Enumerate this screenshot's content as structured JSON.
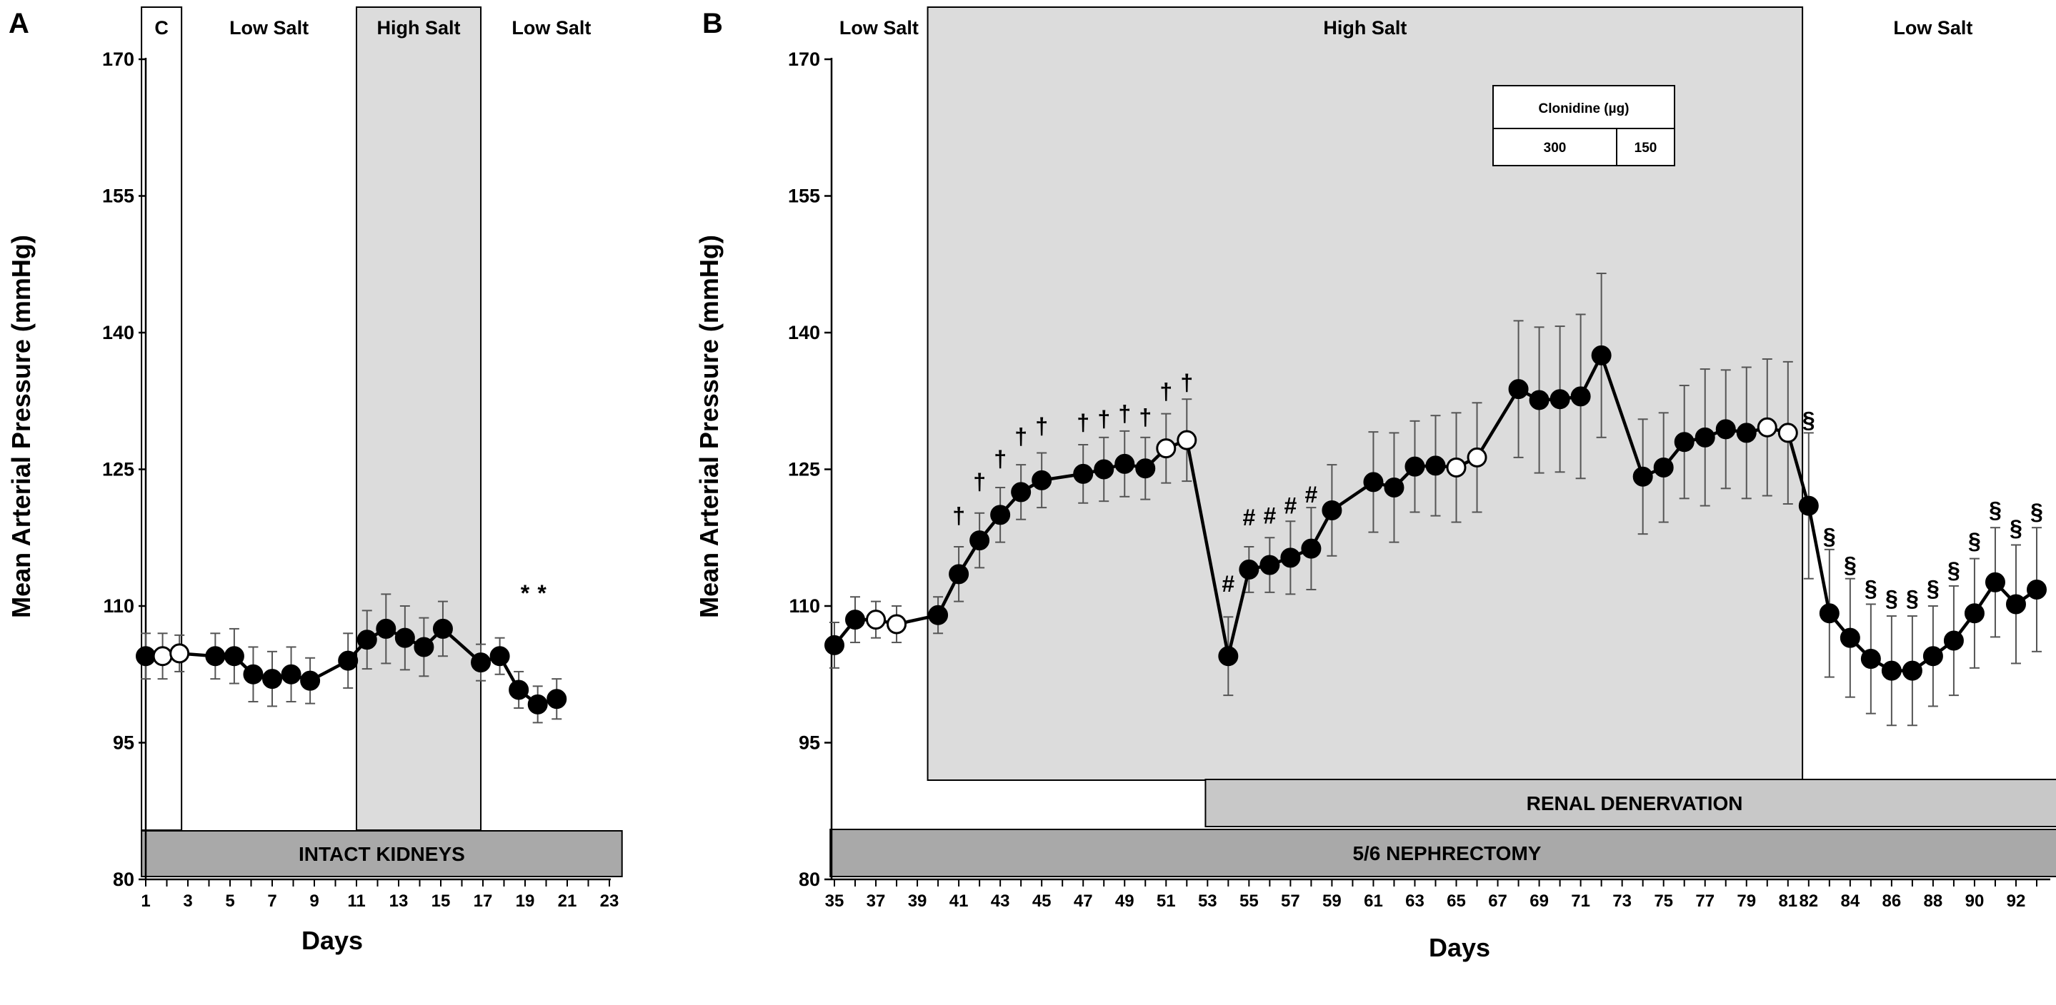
{
  "chart_data": [
    {
      "panel": "A",
      "type": "line",
      "ylabel": "Mean Arterial Pressure (mmHg)",
      "xlabel": "Days",
      "ylim": [
        80,
        170
      ],
      "yticks": [
        80,
        95,
        110,
        125,
        140,
        155,
        170
      ],
      "xlim": [
        1,
        23
      ],
      "xticks": [
        1,
        3,
        5,
        7,
        9,
        11,
        13,
        15,
        17,
        19,
        21,
        23
      ],
      "phases": [
        {
          "label": "C",
          "start": 0.8,
          "end": 2.7,
          "shaded": false,
          "boxed": true
        },
        {
          "label": "Low Salt",
          "start": 2.7,
          "end": 11,
          "shaded": false,
          "boxed": false
        },
        {
          "label": "High Salt",
          "start": 11,
          "end": 16.9,
          "shaded": true,
          "boxed": true
        },
        {
          "label": "Low Salt",
          "start": 16.9,
          "end": 23.6,
          "shaded": false,
          "boxed": false
        }
      ],
      "bars": [
        {
          "label": "INTACT KIDNEYS",
          "start": 0.8,
          "end": 23.6,
          "row": 0
        }
      ],
      "series": [
        {
          "name": "MAP",
          "points": [
            {
              "x": 1,
              "y": 104.5,
              "err": 2.5,
              "filled": true
            },
            {
              "x": 1.8,
              "y": 104.5,
              "err": 2.5,
              "filled": false
            },
            {
              "x": 2.6,
              "y": 104.8,
              "err": 2.0,
              "filled": false
            },
            {
              "x": 4.3,
              "y": 104.5,
              "err": 2.5,
              "filled": true
            },
            {
              "x": 5.2,
              "y": 104.5,
              "err": 3.0,
              "filled": true
            },
            {
              "x": 6.1,
              "y": 102.5,
              "err": 3.0,
              "filled": true
            },
            {
              "x": 7.0,
              "y": 102.0,
              "err": 3.0,
              "filled": true
            },
            {
              "x": 7.9,
              "y": 102.5,
              "err": 3.0,
              "filled": true
            },
            {
              "x": 8.8,
              "y": 101.8,
              "err": 2.5,
              "filled": true
            },
            {
              "x": 10.6,
              "y": 104.0,
              "err": 3.0,
              "filled": true
            },
            {
              "x": 11.5,
              "y": 106.3,
              "err": 3.2,
              "filled": true
            },
            {
              "x": 12.4,
              "y": 107.5,
              "err": 3.8,
              "filled": true
            },
            {
              "x": 13.3,
              "y": 106.5,
              "err": 3.5,
              "filled": true
            },
            {
              "x": 14.2,
              "y": 105.5,
              "err": 3.2,
              "filled": true
            },
            {
              "x": 15.1,
              "y": 107.5,
              "err": 3.0,
              "filled": true
            },
            {
              "x": 16.9,
              "y": 103.8,
              "err": 2.0,
              "filled": true
            },
            {
              "x": 17.8,
              "y": 104.5,
              "err": 2.0,
              "filled": true
            },
            {
              "x": 18.7,
              "y": 100.8,
              "err": 2.0,
              "filled": true
            },
            {
              "x": 19.6,
              "y": 99.2,
              "err": 2.0,
              "filled": true
            },
            {
              "x": 20.5,
              "y": 99.8,
              "err": 2.2,
              "filled": true
            }
          ]
        }
      ],
      "annotations": [
        {
          "text": "*",
          "x": 19.0,
          "y": 111.5
        },
        {
          "text": "*",
          "x": 19.8,
          "y": 111.5
        }
      ]
    },
    {
      "panel": "B",
      "type": "line",
      "ylabel": "Mean Arterial Pressure (mmHg)",
      "xlabel": "Days",
      "ylim": [
        80,
        170
      ],
      "yticks": [
        80,
        95,
        110,
        125,
        140,
        155,
        170
      ],
      "xlim": [
        35,
        93
      ],
      "xticks": [
        35,
        37,
        39,
        41,
        43,
        45,
        47,
        49,
        51,
        53,
        55,
        57,
        59,
        61,
        63,
        65,
        67,
        69,
        71,
        73,
        75,
        77,
        79,
        81,
        82,
        84,
        86,
        88,
        90,
        92
      ],
      "phases": [
        {
          "label": "Low Salt",
          "start": 34.8,
          "end": 39.5,
          "shaded": false,
          "boxed": false
        },
        {
          "label": "High Salt",
          "start": 39.5,
          "end": 81.7,
          "shaded": true,
          "boxed": true
        },
        {
          "label": "Low Salt",
          "start": 81.7,
          "end": 94.3,
          "shaded": false,
          "boxed": false
        }
      ],
      "bars": [
        {
          "label": "RENAL DENERVATION",
          "start": 52.9,
          "end": 94.3,
          "row": 1
        },
        {
          "label": "5/6 NEPHRECTOMY",
          "start": 34.8,
          "end": 94.3,
          "row": 0
        }
      ],
      "legend": {
        "title": "Clonidine  (µg)",
        "cells": [
          "300",
          "150"
        ]
      },
      "series": [
        {
          "name": "MAP",
          "points": [
            {
              "x": 35,
              "y": 105.7,
              "err": 2.5,
              "filled": true
            },
            {
              "x": 36,
              "y": 108.5,
              "err": 2.5,
              "filled": true
            },
            {
              "x": 37,
              "y": 108.5,
              "err": 2.0,
              "filled": false
            },
            {
              "x": 38,
              "y": 108.0,
              "err": 2.0,
              "filled": false
            },
            {
              "x": 40,
              "y": 109.0,
              "err": 2.0,
              "filled": true
            },
            {
              "x": 41,
              "y": 113.5,
              "err": 3.0,
              "filled": true
            },
            {
              "x": 42,
              "y": 117.2,
              "err": 3.0,
              "filled": true
            },
            {
              "x": 43,
              "y": 120.0,
              "err": 3.0,
              "filled": true
            },
            {
              "x": 44,
              "y": 122.5,
              "err": 3.0,
              "filled": true
            },
            {
              "x": 45,
              "y": 123.8,
              "err": 3.0,
              "filled": true
            },
            {
              "x": 47,
              "y": 124.5,
              "err": 3.2,
              "filled": true
            },
            {
              "x": 48,
              "y": 125.0,
              "err": 3.5,
              "filled": true
            },
            {
              "x": 49,
              "y": 125.6,
              "err": 3.6,
              "filled": true
            },
            {
              "x": 50,
              "y": 125.1,
              "err": 3.4,
              "filled": true
            },
            {
              "x": 51,
              "y": 127.3,
              "err": 3.8,
              "filled": false
            },
            {
              "x": 52,
              "y": 128.2,
              "err": 4.5,
              "filled": false
            },
            {
              "x": 54,
              "y": 104.5,
              "err": 4.3,
              "filled": true
            },
            {
              "x": 55,
              "y": 114.0,
              "err": 2.5,
              "filled": true
            },
            {
              "x": 56,
              "y": 114.5,
              "err": 3.0,
              "filled": true
            },
            {
              "x": 57,
              "y": 115.3,
              "err": 4.0,
              "filled": true
            },
            {
              "x": 58,
              "y": 116.3,
              "err": 4.5,
              "filled": true
            },
            {
              "x": 59,
              "y": 120.5,
              "err": 5.0,
              "filled": true
            },
            {
              "x": 61,
              "y": 123.6,
              "err": 5.5,
              "filled": true
            },
            {
              "x": 62,
              "y": 123.0,
              "err": 6.0,
              "filled": true
            },
            {
              "x": 63,
              "y": 125.3,
              "err": 5.0,
              "filled": true
            },
            {
              "x": 64,
              "y": 125.4,
              "err": 5.5,
              "filled": true
            },
            {
              "x": 65,
              "y": 125.2,
              "err": 6.0,
              "filled": false
            },
            {
              "x": 66,
              "y": 126.3,
              "err": 6.0,
              "filled": false
            },
            {
              "x": 68,
              "y": 133.8,
              "err": 7.5,
              "filled": true
            },
            {
              "x": 69,
              "y": 132.6,
              "err": 8.0,
              "filled": true
            },
            {
              "x": 70,
              "y": 132.7,
              "err": 8.0,
              "filled": true
            },
            {
              "x": 71,
              "y": 133.0,
              "err": 9.0,
              "filled": true
            },
            {
              "x": 72,
              "y": 137.5,
              "err": 9.0,
              "filled": true
            },
            {
              "x": 74,
              "y": 124.2,
              "err": 6.3,
              "filled": true
            },
            {
              "x": 75,
              "y": 125.2,
              "err": 6.0,
              "filled": true
            },
            {
              "x": 76,
              "y": 128.0,
              "err": 6.2,
              "filled": true
            },
            {
              "x": 77,
              "y": 128.5,
              "err": 7.5,
              "filled": true
            },
            {
              "x": 78,
              "y": 129.4,
              "err": 6.5,
              "filled": true
            },
            {
              "x": 79,
              "y": 129.0,
              "err": 7.2,
              "filled": true
            },
            {
              "x": 80,
              "y": 129.6,
              "err": 7.5,
              "filled": false
            },
            {
              "x": 81,
              "y": 129.0,
              "err": 7.8,
              "filled": false
            },
            {
              "x": 82,
              "y": 121.0,
              "err": 8.0,
              "filled": true
            },
            {
              "x": 83,
              "y": 109.2,
              "err": 7.0,
              "filled": true
            },
            {
              "x": 84,
              "y": 106.5,
              "err": 6.5,
              "filled": true
            },
            {
              "x": 85,
              "y": 104.2,
              "err": 6.0,
              "filled": true
            },
            {
              "x": 86,
              "y": 102.9,
              "err": 6.0,
              "filled": true
            },
            {
              "x": 87,
              "y": 102.9,
              "err": 6.0,
              "filled": true
            },
            {
              "x": 88,
              "y": 104.5,
              "err": 5.5,
              "filled": true
            },
            {
              "x": 89,
              "y": 106.2,
              "err": 6.0,
              "filled": true
            },
            {
              "x": 90,
              "y": 109.2,
              "err": 6.0,
              "filled": true
            },
            {
              "x": 91,
              "y": 112.6,
              "err": 6.0,
              "filled": true
            },
            {
              "x": 92,
              "y": 110.2,
              "err": 6.5,
              "filled": true
            },
            {
              "x": 93,
              "y": 111.8,
              "err": 6.8,
              "filled": true
            }
          ]
        }
      ],
      "annotations": [
        {
          "text": "†",
          "x": 41.0,
          "y": 120.0
        },
        {
          "text": "†",
          "x": 42.0,
          "y": 123.7
        },
        {
          "text": "†",
          "x": 43.0,
          "y": 126.2
        },
        {
          "text": "†",
          "x": 44.0,
          "y": 128.7
        },
        {
          "text": "†",
          "x": 45.0,
          "y": 129.8
        },
        {
          "text": "†",
          "x": 47.0,
          "y": 130.2
        },
        {
          "text": "†",
          "x": 48.0,
          "y": 130.6
        },
        {
          "text": "†",
          "x": 49.0,
          "y": 131.2
        },
        {
          "text": "†",
          "x": 50.0,
          "y": 130.8
        },
        {
          "text": "†",
          "x": 51.0,
          "y": 133.6
        },
        {
          "text": "†",
          "x": 52.0,
          "y": 134.6
        },
        {
          "text": "#",
          "x": 54.0,
          "y": 112.5
        },
        {
          "text": "#",
          "x": 55.0,
          "y": 119.8
        },
        {
          "text": "#",
          "x": 56.0,
          "y": 120.0
        },
        {
          "text": "#",
          "x": 57.0,
          "y": 121.1
        },
        {
          "text": "#",
          "x": 58.0,
          "y": 122.3
        },
        {
          "text": "§",
          "x": 82.0,
          "y": 130.5
        },
        {
          "text": "§",
          "x": 83.0,
          "y": 117.7
        },
        {
          "text": "§",
          "x": 84.0,
          "y": 114.6
        },
        {
          "text": "§",
          "x": 85.0,
          "y": 112.0
        },
        {
          "text": "§",
          "x": 86.0,
          "y": 110.9
        },
        {
          "text": "§",
          "x": 87.0,
          "y": 110.9
        },
        {
          "text": "§",
          "x": 88.0,
          "y": 112.0
        },
        {
          "text": "§",
          "x": 89.0,
          "y": 114.0
        },
        {
          "text": "§",
          "x": 90.0,
          "y": 117.2
        },
        {
          "text": "§",
          "x": 91.0,
          "y": 120.6
        },
        {
          "text": "§",
          "x": 92.0,
          "y": 118.6
        },
        {
          "text": "§",
          "x": 93.0,
          "y": 120.4
        }
      ]
    }
  ]
}
